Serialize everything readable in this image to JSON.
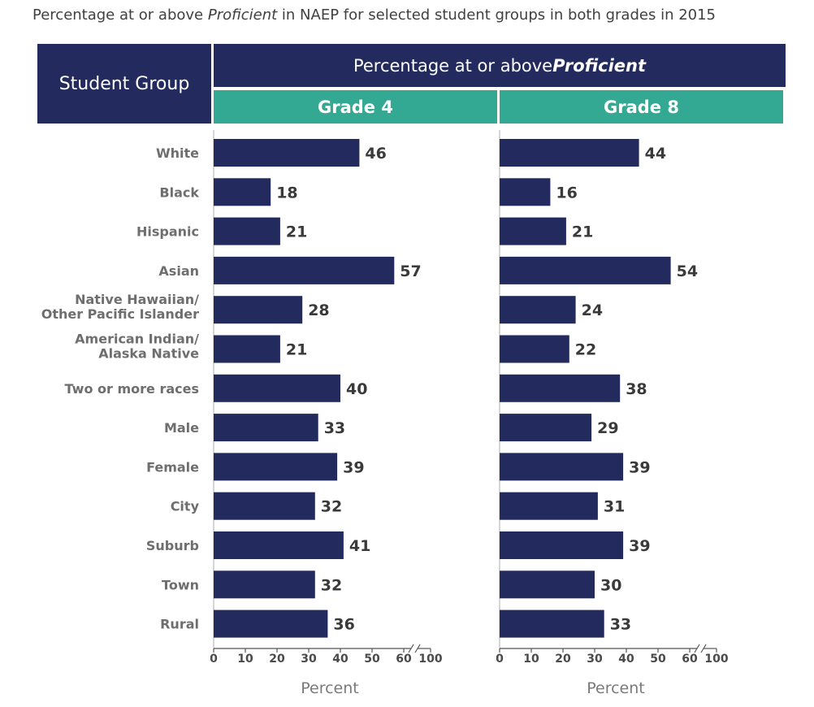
{
  "title_prefix": "Percentage at or above ",
  "title_italic": "Proficient",
  "title_suffix": " in NAEP for selected student groups in both grades in 2015",
  "header": {
    "group_label": "Student Group",
    "pct_prefix": "Percentage at or above ",
    "pct_emph": "Proficient"
  },
  "colors": {
    "header": "#232a5e",
    "grade_header": "#33a893",
    "bar": "#232a5e"
  },
  "chart_data": {
    "type": "bar",
    "orientation": "horizontal",
    "categories": [
      "White",
      "Black",
      "Hispanic",
      "Asian",
      [
        "Native Hawaiian/",
        "Other Pacific Islander"
      ],
      [
        "American Indian/",
        "Alaska Native"
      ],
      "Two or more races",
      "Male",
      "Female",
      "City",
      "Suburb",
      "Town",
      "Rural"
    ],
    "series": [
      {
        "name": "Grade 4",
        "values": [
          46,
          18,
          21,
          57,
          28,
          21,
          40,
          33,
          39,
          32,
          41,
          32,
          36
        ]
      },
      {
        "name": "Grade 8",
        "values": [
          44,
          16,
          21,
          54,
          24,
          22,
          38,
          29,
          39,
          31,
          39,
          30,
          33
        ]
      }
    ],
    "xticks": [
      "0",
      "10",
      "20",
      "30",
      "40",
      "50",
      "60",
      "100"
    ],
    "xlabel": "Percent",
    "axis_break": "between 60 and 100",
    "xlim": [
      0,
      100
    ]
  }
}
